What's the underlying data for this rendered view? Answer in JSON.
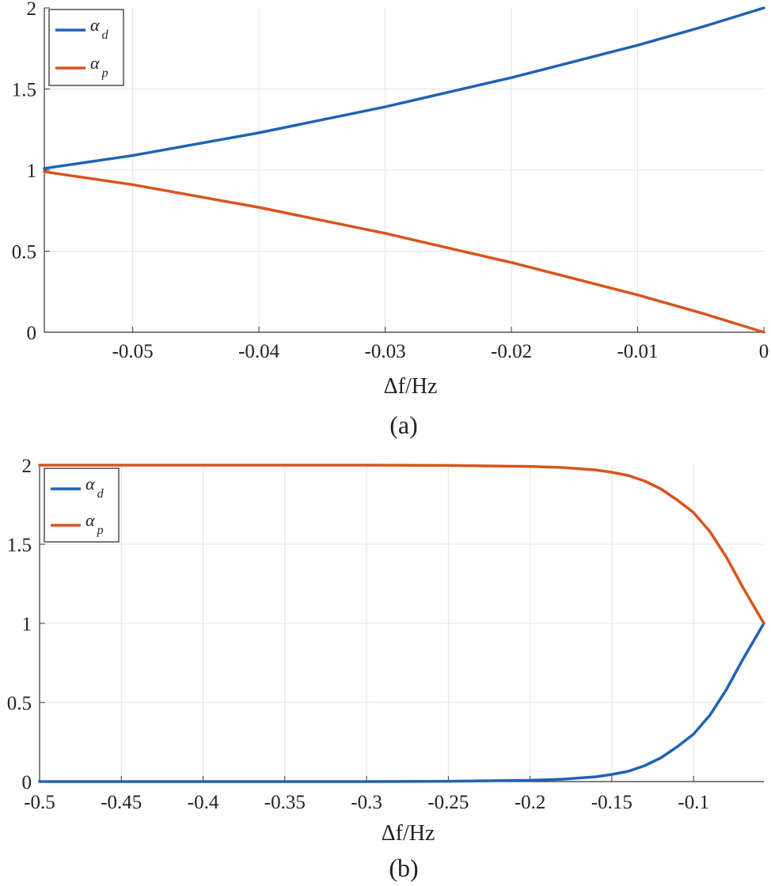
{
  "chart_data": [
    {
      "type": "line",
      "caption": "(a)",
      "xlabel": "Δf/Hz",
      "ylabel": "",
      "xlim": [
        -0.057,
        0
      ],
      "ylim": [
        0,
        2
      ],
      "xticks": [
        -0.05,
        -0.04,
        -0.03,
        -0.02,
        -0.01,
        0
      ],
      "xtick_labels": [
        "-0.05",
        "-0.04",
        "-0.03",
        "-0.02",
        "-0.01",
        "0"
      ],
      "yticks": [
        0,
        0.5,
        1,
        1.5,
        2
      ],
      "ytick_labels": [
        "0",
        "0.5",
        "1",
        "1.5",
        "2"
      ],
      "grid": true,
      "legend_position": "top-left",
      "series": [
        {
          "name": "α_d",
          "label_main": "α",
          "label_sub": "d",
          "color": "#1f63b4",
          "x": [
            -0.057,
            -0.05,
            -0.045,
            -0.04,
            -0.035,
            -0.03,
            -0.025,
            -0.02,
            -0.015,
            -0.01,
            -0.005,
            0
          ],
          "y": [
            1.01,
            1.09,
            1.16,
            1.23,
            1.31,
            1.39,
            1.48,
            1.57,
            1.67,
            1.77,
            1.88,
            2.0
          ]
        },
        {
          "name": "α_p",
          "label_main": "α",
          "label_sub": "p",
          "color": "#d9541a",
          "x": [
            -0.057,
            -0.05,
            -0.045,
            -0.04,
            -0.035,
            -0.03,
            -0.025,
            -0.02,
            -0.015,
            -0.01,
            -0.005,
            0
          ],
          "y": [
            0.99,
            0.91,
            0.84,
            0.77,
            0.69,
            0.61,
            0.52,
            0.43,
            0.33,
            0.23,
            0.12,
            0.0
          ]
        }
      ]
    },
    {
      "type": "line",
      "caption": "(b)",
      "xlabel": "Δf/Hz",
      "ylabel": "",
      "xlim": [
        -0.5,
        -0.057
      ],
      "ylim": [
        0,
        2
      ],
      "xticks": [
        -0.5,
        -0.45,
        -0.4,
        -0.35,
        -0.3,
        -0.25,
        -0.2,
        -0.15,
        -0.1
      ],
      "xtick_labels": [
        "-0.5",
        "-0.45",
        "-0.4",
        "-0.35",
        "-0.3",
        "-0.25",
        "-0.2",
        "-0.15",
        "-0.1"
      ],
      "yticks": [
        0,
        0.5,
        1,
        1.5,
        2
      ],
      "ytick_labels": [
        "0",
        "0.5",
        "1",
        "1.5",
        "2"
      ],
      "grid": true,
      "legend_position": "top-left",
      "series": [
        {
          "name": "α_d",
          "label_main": "α",
          "label_sub": "d",
          "color": "#1f63b4",
          "x": [
            -0.5,
            -0.3,
            -0.25,
            -0.2,
            -0.18,
            -0.16,
            -0.15,
            -0.14,
            -0.13,
            -0.12,
            -0.11,
            -0.1,
            -0.09,
            -0.08,
            -0.07,
            -0.057
          ],
          "y": [
            0.0,
            0.0,
            0.002,
            0.008,
            0.015,
            0.03,
            0.045,
            0.065,
            0.1,
            0.15,
            0.22,
            0.3,
            0.42,
            0.58,
            0.77,
            1.0
          ]
        },
        {
          "name": "α_p",
          "label_main": "α",
          "label_sub": "p",
          "color": "#d9541a",
          "x": [
            -0.5,
            -0.3,
            -0.25,
            -0.2,
            -0.18,
            -0.16,
            -0.15,
            -0.14,
            -0.13,
            -0.12,
            -0.11,
            -0.1,
            -0.09,
            -0.08,
            -0.07,
            -0.057
          ],
          "y": [
            2.0,
            2.0,
            1.998,
            1.992,
            1.985,
            1.97,
            1.955,
            1.935,
            1.9,
            1.85,
            1.78,
            1.7,
            1.58,
            1.42,
            1.23,
            1.0
          ]
        }
      ]
    }
  ]
}
